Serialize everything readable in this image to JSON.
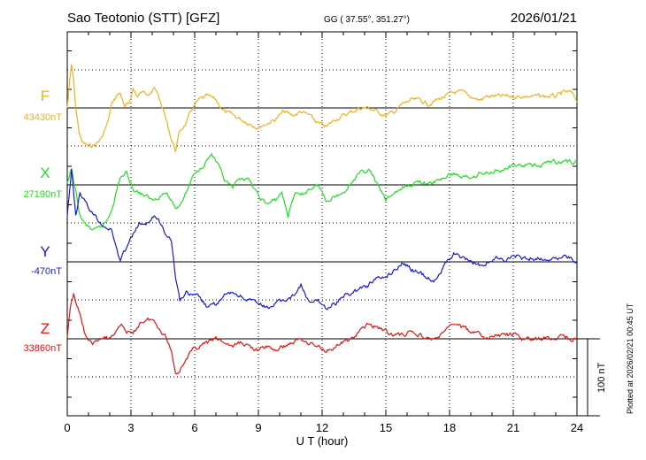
{
  "header": {
    "station": "Sao Teotonio (STT)  [GFZ]",
    "coords": "GG ( 37.55°, 351.27°)",
    "date": "2026/01/21"
  },
  "plotted_note": "Plotted at 2026/02/21 00:45 UT",
  "scale_label": "100 nT",
  "chart_data": {
    "type": "line",
    "xlabel": "U T (hour)",
    "ylabel": "",
    "xlim": [
      0,
      24
    ],
    "xticks": [
      "0",
      "3",
      "6",
      "9",
      "12",
      "15",
      "18",
      "21",
      "24"
    ],
    "scale_nT": 100,
    "grid": true,
    "series": [
      {
        "name": "F",
        "baseline_label": "43430nT",
        "color": "#f0b020",
        "baseline_nT": 43430,
        "x": [
          0,
          0.1,
          0.2,
          0.3,
          0.4,
          0.55,
          0.7,
          1.0,
          1.3,
          1.6,
          1.9,
          2.1,
          2.3,
          2.5,
          2.7,
          2.9,
          3.1,
          3.3,
          3.5,
          3.8,
          4.1,
          4.3,
          4.6,
          4.9,
          5.1,
          5.3,
          5.6,
          5.9,
          6.2,
          6.6,
          7.0,
          7.4,
          7.8,
          8.2,
          8.6,
          9.0,
          9.4,
          9.8,
          10.2,
          10.6,
          11.0,
          11.4,
          11.8,
          12.2,
          12.6,
          13.0,
          13.4,
          13.8,
          14.2,
          14.6,
          15.0,
          15.4,
          15.8,
          16.2,
          16.6,
          17.0,
          17.4,
          17.8,
          18.2,
          18.6,
          19.0,
          19.4,
          19.8,
          20.2,
          20.6,
          21.0,
          21.4,
          21.8,
          22.2,
          22.6,
          23.0,
          23.4,
          23.7,
          24.0
        ],
        "values": [
          0,
          30,
          55,
          35,
          0,
          -30,
          -45,
          -50,
          -48,
          -40,
          -20,
          5,
          15,
          20,
          0,
          5,
          25,
          15,
          20,
          20,
          25,
          15,
          -10,
          -40,
          -55,
          -30,
          -20,
          0,
          10,
          15,
          10,
          -5,
          -10,
          -15,
          -20,
          -25,
          -20,
          -15,
          -5,
          -10,
          -5,
          -10,
          -20,
          -25,
          -15,
          -10,
          -5,
          0,
          0,
          -5,
          -10,
          -5,
          5,
          10,
          10,
          5,
          10,
          15,
          20,
          20,
          15,
          10,
          15,
          15,
          15,
          15,
          15,
          15,
          15,
          15,
          15,
          20,
          20,
          10
        ]
      },
      {
        "name": "X",
        "baseline_label": "27190nT",
        "color": "#22dd22",
        "baseline_nT": 27190,
        "x": [
          0,
          0.2,
          0.4,
          0.6,
          0.8,
          1.0,
          1.3,
          1.6,
          1.9,
          2.1,
          2.3,
          2.5,
          2.8,
          3.1,
          3.4,
          3.7,
          4.0,
          4.3,
          4.6,
          4.9,
          5.1,
          5.3,
          5.6,
          5.9,
          6.2,
          6.5,
          6.8,
          7.1,
          7.4,
          7.8,
          8.2,
          8.6,
          9.0,
          9.4,
          9.8,
          10.1,
          10.4,
          10.7,
          11.0,
          11.4,
          11.8,
          12.2,
          12.6,
          13.0,
          13.4,
          13.8,
          14.2,
          14.6,
          15.0,
          15.4,
          15.8,
          16.2,
          16.6,
          17.0,
          17.4,
          17.8,
          18.2,
          18.6,
          19.0,
          19.4,
          19.8,
          20.2,
          20.6,
          21.0,
          21.4,
          21.8,
          22.2,
          22.6,
          23.0,
          23.4,
          23.7,
          24.0
        ],
        "values": [
          0,
          20,
          -10,
          -40,
          -50,
          -55,
          -60,
          -55,
          -45,
          -30,
          -10,
          10,
          15,
          -5,
          -10,
          -15,
          -20,
          -15,
          -10,
          -20,
          -30,
          -25,
          -10,
          10,
          20,
          30,
          40,
          25,
          5,
          -5,
          10,
          5,
          -15,
          -25,
          -20,
          -10,
          -40,
          -10,
          -15,
          -5,
          0,
          -20,
          -15,
          -10,
          5,
          15,
          20,
          0,
          -20,
          -10,
          -5,
          0,
          5,
          0,
          5,
          10,
          15,
          10,
          10,
          15,
          15,
          20,
          20,
          25,
          25,
          25,
          25,
          30,
          30,
          30,
          30,
          30
        ]
      },
      {
        "name": "Y",
        "baseline_label": "-470nT",
        "color": "#1a1acc",
        "baseline_nT": -470,
        "x": [
          0,
          0.2,
          0.4,
          0.6,
          0.8,
          1.0,
          1.3,
          1.6,
          1.9,
          2.1,
          2.3,
          2.5,
          2.8,
          3.1,
          3.4,
          3.7,
          4.0,
          4.3,
          4.6,
          4.9,
          5.1,
          5.3,
          5.6,
          5.9,
          6.2,
          6.6,
          7.0,
          7.4,
          7.8,
          8.2,
          8.6,
          9.0,
          9.4,
          9.8,
          10.2,
          10.6,
          11.0,
          11.4,
          11.8,
          12.2,
          12.6,
          13.0,
          13.4,
          13.8,
          14.2,
          14.6,
          15.0,
          15.4,
          15.8,
          16.2,
          16.6,
          17.0,
          17.4,
          17.8,
          18.2,
          18.6,
          19.0,
          19.4,
          19.8,
          20.2,
          20.6,
          21.0,
          21.4,
          21.8,
          22.2,
          22.6,
          23.0,
          23.4,
          23.7,
          24.0
        ],
        "values": [
          60,
          120,
          60,
          90,
          80,
          70,
          60,
          50,
          45,
          40,
          20,
          0,
          20,
          35,
          50,
          45,
          60,
          55,
          40,
          30,
          -20,
          -50,
          -40,
          -45,
          -45,
          -60,
          -55,
          -45,
          -40,
          -45,
          -50,
          -55,
          -60,
          -55,
          -50,
          -45,
          -30,
          -55,
          -50,
          -60,
          -55,
          -45,
          -40,
          -35,
          -30,
          -20,
          -20,
          -10,
          0,
          -10,
          -15,
          -20,
          -25,
          0,
          10,
          5,
          0,
          -5,
          0,
          5,
          0,
          10,
          5,
          5,
          5,
          5,
          5,
          5,
          5,
          0
        ]
      },
      {
        "name": "Z",
        "baseline_label": "33860nT",
        "color": "#dd1515",
        "baseline_nT": 33860,
        "x": [
          0,
          0.15,
          0.3,
          0.45,
          0.6,
          0.8,
          1.0,
          1.3,
          1.6,
          1.9,
          2.2,
          2.5,
          2.8,
          3.1,
          3.4,
          3.7,
          4.0,
          4.3,
          4.6,
          4.9,
          5.1,
          5.3,
          5.6,
          5.9,
          6.2,
          6.6,
          7.0,
          7.4,
          7.8,
          8.2,
          8.6,
          9.0,
          9.4,
          9.8,
          10.2,
          10.6,
          11.0,
          11.4,
          11.8,
          12.2,
          12.6,
          13.0,
          13.4,
          13.8,
          14.2,
          14.6,
          15.0,
          15.4,
          15.8,
          16.2,
          16.6,
          17.0,
          17.4,
          17.8,
          18.2,
          18.6,
          19.0,
          19.4,
          19.8,
          20.2,
          20.6,
          21.0,
          21.4,
          21.8,
          22.2,
          22.6,
          23.0,
          23.4,
          23.7,
          24.0
        ],
        "values": [
          0,
          40,
          60,
          45,
          30,
          10,
          -5,
          -5,
          0,
          0,
          5,
          20,
          10,
          5,
          20,
          25,
          25,
          15,
          5,
          -15,
          -45,
          -40,
          -25,
          -15,
          -10,
          -5,
          0,
          -5,
          -10,
          -5,
          -10,
          -15,
          -10,
          -15,
          -10,
          -5,
          0,
          -5,
          -10,
          -15,
          -10,
          -5,
          0,
          10,
          20,
          15,
          10,
          5,
          5,
          10,
          5,
          0,
          0,
          10,
          20,
          15,
          10,
          5,
          0,
          5,
          5,
          5,
          0,
          0,
          0,
          0,
          0,
          5,
          0,
          0
        ]
      }
    ]
  }
}
